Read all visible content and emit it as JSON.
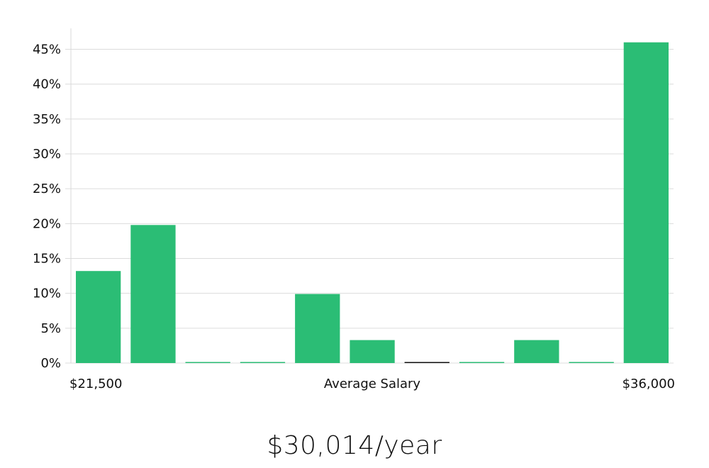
{
  "chart_data": {
    "type": "bar",
    "title": "",
    "xlabel": "Average Salary",
    "x_min_label": "$21,500",
    "x_max_label": "$36,000",
    "ylabel": "",
    "ylim": [
      0,
      48
    ],
    "yticks": [
      0,
      5,
      10,
      15,
      20,
      25,
      30,
      35,
      40,
      45
    ],
    "ytick_labels": [
      "0%",
      "5%",
      "10%",
      "15%",
      "20%",
      "25%",
      "30%",
      "35%",
      "40%",
      "45%"
    ],
    "values": [
      13.2,
      19.8,
      0,
      0,
      9.9,
      3.3,
      0,
      0,
      3.3,
      0,
      46.0
    ],
    "highlight_bin": 6,
    "bar_color": "#2bbd75",
    "highlight_color": "#111111"
  },
  "summary": {
    "average_label": "$30,014/year"
  }
}
